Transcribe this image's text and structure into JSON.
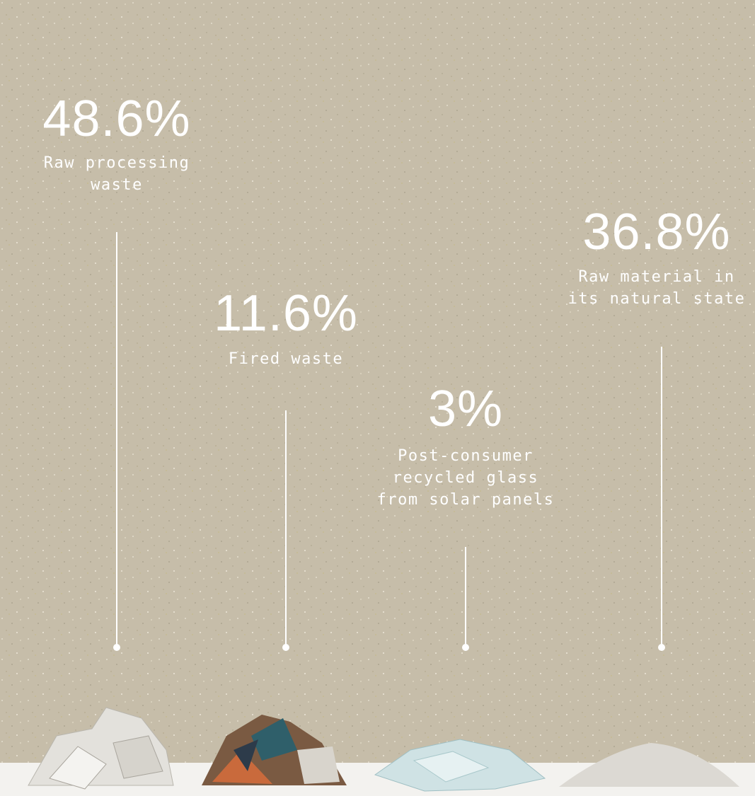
{
  "items": [
    {
      "value": "48.6%",
      "label_lines": [
        "Raw processing",
        "waste"
      ]
    },
    {
      "value": "11.6%",
      "label_lines": [
        "Fired waste"
      ]
    },
    {
      "value": "3%",
      "label_lines": [
        "Post-consumer",
        "recycled glass",
        "from solar panels"
      ]
    },
    {
      "value": "36.8%",
      "label_lines": [
        "Raw material in",
        "its natural state"
      ]
    }
  ]
}
